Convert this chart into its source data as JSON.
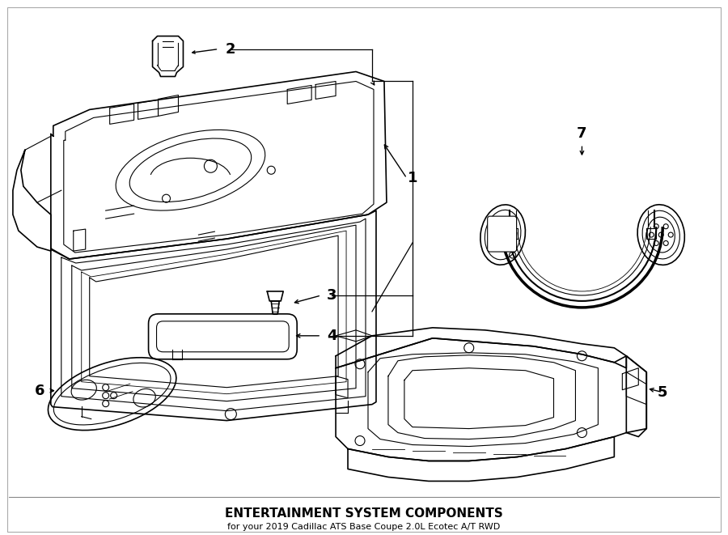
{
  "title": "ENTERTAINMENT SYSTEM COMPONENTS",
  "subtitle": "for your 2019 Cadillac ATS Base Coupe 2.0L Ecotec A/T RWD",
  "bg_color": "#ffffff",
  "line_color": "#000000",
  "label_color": "#000000",
  "fig_w": 9.0,
  "fig_h": 6.61,
  "dpi": 100
}
